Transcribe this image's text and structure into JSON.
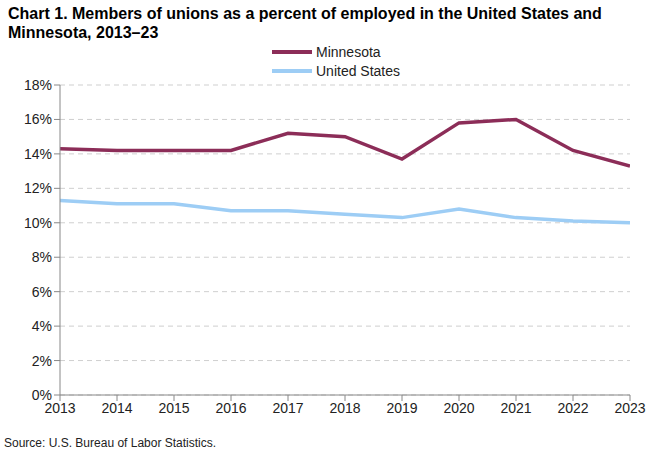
{
  "chart_data": {
    "type": "line",
    "title": "Chart 1. Members of unions as a percent of employed in the United States and Minnesota, 2013–23",
    "source": "Source: U.S. Bureau of Labor Statistics.",
    "x": [
      2013,
      2014,
      2015,
      2016,
      2017,
      2018,
      2019,
      2020,
      2021,
      2022,
      2023
    ],
    "series": [
      {
        "name": "Minnesota",
        "color": "#8c2d58",
        "values": [
          14.3,
          14.2,
          14.2,
          14.2,
          15.2,
          15.0,
          13.7,
          15.8,
          16.0,
          14.2,
          13.3
        ]
      },
      {
        "name": "United States",
        "color": "#9dcdf5",
        "values": [
          11.3,
          11.1,
          11.1,
          10.7,
          10.7,
          10.5,
          10.3,
          10.8,
          10.3,
          10.1,
          10.0
        ]
      }
    ],
    "xlim": [
      2013,
      2023
    ],
    "xticks": [
      2013,
      2014,
      2015,
      2016,
      2017,
      2018,
      2019,
      2020,
      2021,
      2022,
      2023
    ],
    "ylim": [
      0,
      18
    ],
    "yticks": [
      {
        "value": 0,
        "label": "0%"
      },
      {
        "value": 2,
        "label": "2%"
      },
      {
        "value": 4,
        "label": "4%"
      },
      {
        "value": 6,
        "label": "6%"
      },
      {
        "value": 8,
        "label": "8%"
      },
      {
        "value": 10,
        "label": "10%"
      },
      {
        "value": 12,
        "label": "12%"
      },
      {
        "value": 14,
        "label": "14%"
      },
      {
        "value": 16,
        "label": "16%"
      },
      {
        "value": 18,
        "label": "18%"
      }
    ],
    "grid": true,
    "legend": "top"
  }
}
